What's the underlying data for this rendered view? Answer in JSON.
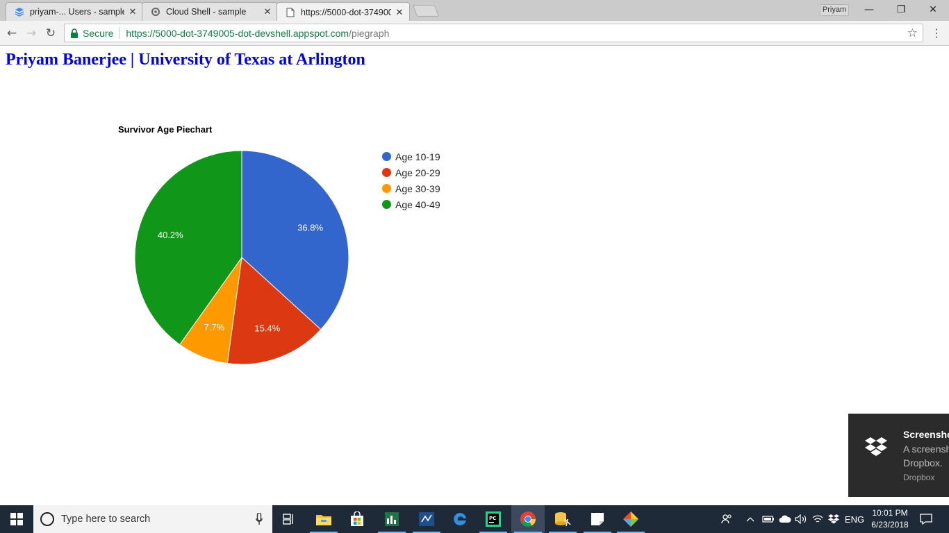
{
  "browser": {
    "tabs": [
      {
        "label": "priyam-... Users - sample",
        "close": "✕"
      },
      {
        "label": "Cloud Shell - sample",
        "close": "✕"
      },
      {
        "label": "https://5000-dot-374900",
        "close": "✕"
      }
    ],
    "profile": "Priyam",
    "window_controls": {
      "minimize": "—",
      "maximize": "❐",
      "close": "✕"
    },
    "nav": {
      "back": "←",
      "forward": "→",
      "reload": "↻"
    },
    "address": {
      "secure_label": "Secure",
      "url_host": "https://5000-dot-3749005-dot-devshell.appspot.com",
      "url_path": "/piegraph"
    },
    "bookmark_star": "☆",
    "menu": "⋮"
  },
  "page": {
    "heading": "Priyam Banerjee | University of Texas at Arlington"
  },
  "chart_data": {
    "type": "pie",
    "title": "Survivor Age Piechart",
    "categories": [
      "Age 10-19",
      "Age 20-29",
      "Age 30-39",
      "Age 40-49"
    ],
    "values": [
      36.8,
      15.4,
      7.7,
      40.2
    ],
    "labels": [
      "36.8%",
      "15.4%",
      "7.7%",
      "40.2%"
    ],
    "colors": [
      "#3366cc",
      "#dc3912",
      "#ff9900",
      "#109618"
    ],
    "start_angle_deg": 0,
    "direction": "clockwise",
    "legend_position": "right"
  },
  "toast": {
    "title": "Screenshot saved",
    "line1": "A screenshot was added to your",
    "line2": "Dropbox.",
    "source": "Dropbox",
    "icon": "dropbox-icon"
  },
  "taskbar": {
    "search_placeholder": "Type here to search",
    "apps": [
      "task-view-icon",
      "file-explorer-icon",
      "store-icon",
      "excel-chart-icon",
      "vscode-icon",
      "edge-icon",
      "pycharm-icon",
      "chrome-icon",
      "database-tool-icon",
      "sticky-notes-icon",
      "git-icon"
    ],
    "tray": {
      "language": "ENG",
      "time": "10:01 PM",
      "date": "6/23/2018"
    }
  }
}
